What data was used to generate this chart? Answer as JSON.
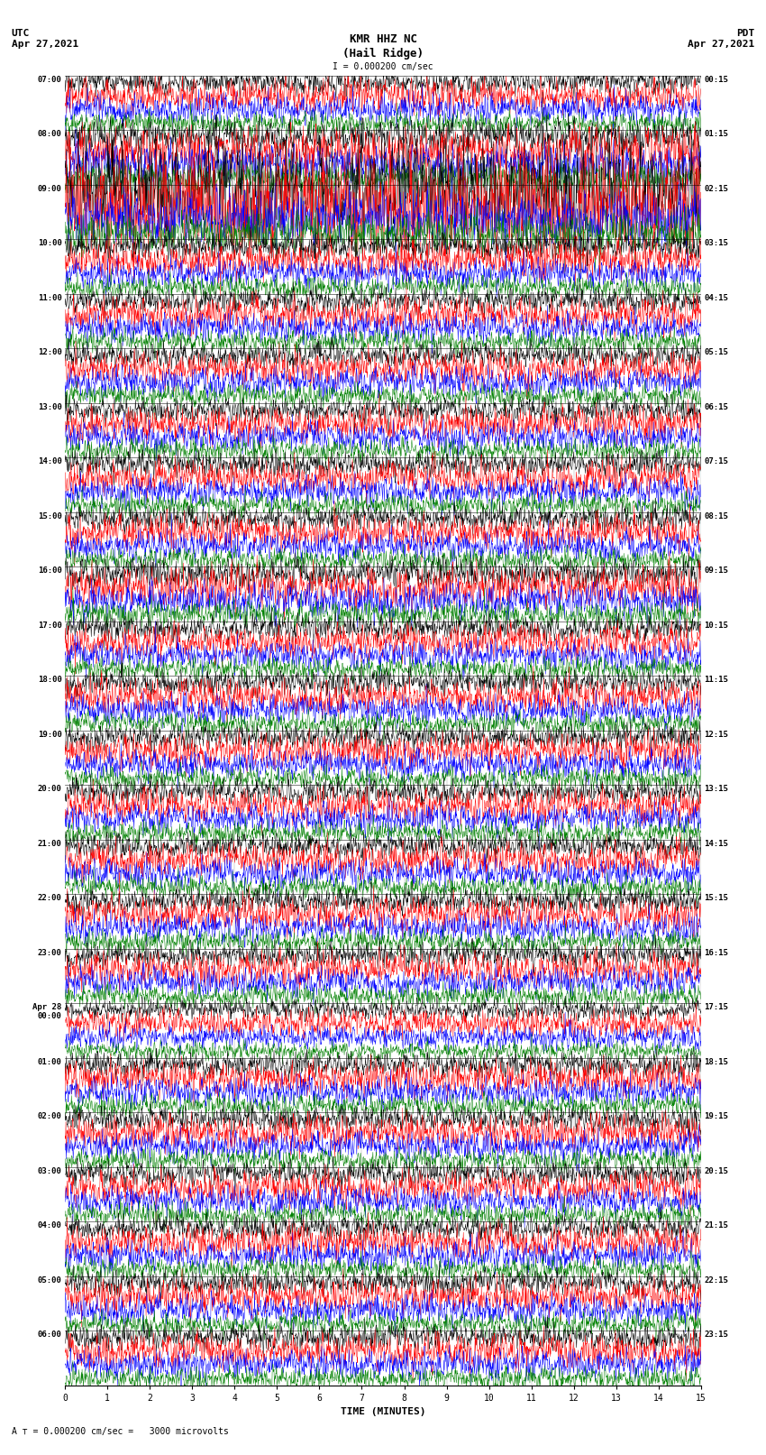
{
  "title_center": "KMR HHZ NC",
  "title_sub": "(Hail Ridge)",
  "title_left": "UTC\nApr 27,2021",
  "title_right": "PDT\nApr 27,2021",
  "scale_label": "A ⊤ = 0.000200 cm/sec =   3000 microvolts",
  "scale_text": "I = 0.000200 cm/sec",
  "xlabel": "TIME (MINUTES)",
  "xticks": [
    0,
    1,
    2,
    3,
    4,
    5,
    6,
    7,
    8,
    9,
    10,
    11,
    12,
    13,
    14,
    15
  ],
  "left_times": [
    "07:00",
    "08:00",
    "09:00",
    "10:00",
    "11:00",
    "12:00",
    "13:00",
    "14:00",
    "15:00",
    "16:00",
    "17:00",
    "18:00",
    "19:00",
    "20:00",
    "21:00",
    "22:00",
    "23:00",
    "Apr 28\n00:00",
    "01:00",
    "02:00",
    "03:00",
    "04:00",
    "05:00",
    "06:00"
  ],
  "right_times": [
    "00:15",
    "01:15",
    "02:15",
    "03:15",
    "04:15",
    "05:15",
    "06:15",
    "07:15",
    "08:15",
    "09:15",
    "10:15",
    "11:15",
    "12:15",
    "13:15",
    "14:15",
    "15:15",
    "16:15",
    "17:15",
    "18:15",
    "19:15",
    "20:15",
    "21:15",
    "22:15",
    "23:15"
  ],
  "n_rows": 24,
  "n_traces": 4,
  "trace_colors": [
    "black",
    "red",
    "blue",
    "green"
  ],
  "fig_width": 8.5,
  "fig_height": 16.13,
  "bg_color": "white",
  "dpi": 100
}
